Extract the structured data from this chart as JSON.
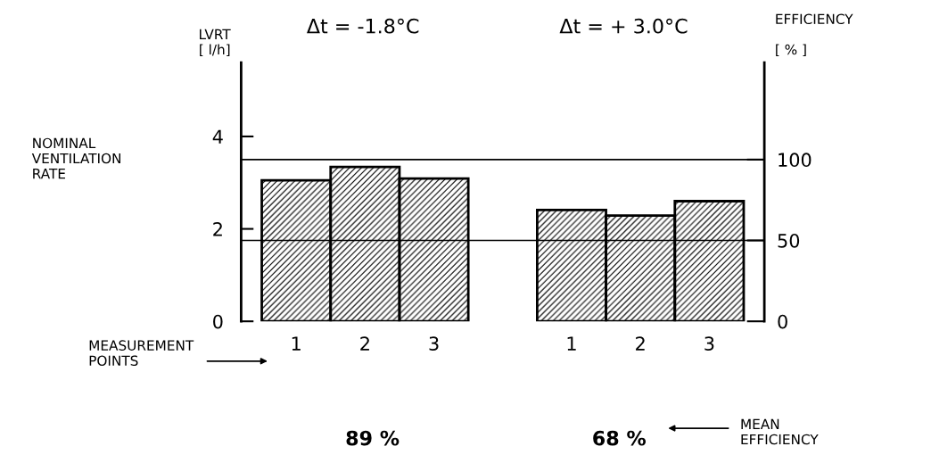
{
  "chart_data": {
    "type": "bar",
    "ylabel": "LVRT\n[ l/h]",
    "y2label": "EFFICIENCY\n\n[ % ]",
    "categories": [
      "1",
      "2",
      "3",
      null,
      "1",
      "2",
      "3"
    ],
    "values": [
      3.05,
      3.34,
      3.09,
      null,
      2.41,
      2.29,
      2.6
    ],
    "color": "#000000",
    "ylim": [
      0,
      5.6
    ],
    "yticks": [
      0,
      2,
      4
    ],
    "y2lim": [
      0,
      160
    ],
    "y2ticks": [
      0,
      50,
      100
    ],
    "ref_lines": [
      {
        "axis": "y2",
        "value": 100,
        "label": "NOMINAL\nVENTILATION\nRATE"
      },
      {
        "axis": "y2",
        "value": 50
      }
    ],
    "annotations": [
      "Δt = -1.8°C",
      "Δt = + 3.0°C",
      "MEASUREMENT\nPOINTS",
      "89 %",
      "68 %",
      "MEAN\nEFFICIENCY"
    ]
  }
}
